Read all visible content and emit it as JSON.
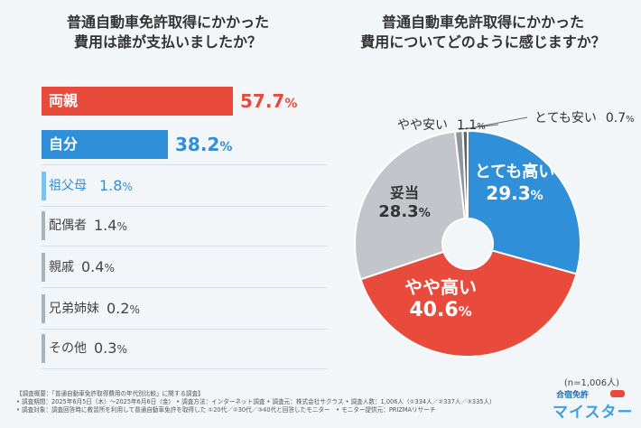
{
  "left": {
    "title_line1": "普通自動車免許取得にかかった",
    "title_line2": "費用は誰が支払いましたか？"
  },
  "right": {
    "title_line1": "普通自動車免許取得にかかった",
    "title_line2": "費用についてどのように感じますか？",
    "n_label": "(n=1,006人)"
  },
  "chart_data": [
    {
      "type": "bar",
      "orientation": "horizontal",
      "title": "普通自動車免許取得にかかった費用は誰が支払いましたか？",
      "categories": [
        "両親",
        "自分",
        "祖父母",
        "配偶者",
        "親戚",
        "兄弟姉妹",
        "その他"
      ],
      "values": [
        57.7,
        38.2,
        1.8,
        1.4,
        0.4,
        0.2,
        0.3
      ],
      "value_labels": [
        "57.7",
        "38.2",
        "1.8",
        "1.4",
        "0.4",
        "0.2",
        "0.3"
      ],
      "unit": "%",
      "xlim": [
        0,
        60
      ],
      "colors": [
        "#e84b3c",
        "#2f8fd8",
        "#7fc0ec",
        "#a8b2bb",
        "#a8b2bb",
        "#a8b2bb",
        "#a8b2bb"
      ]
    },
    {
      "type": "pie",
      "style": "donut",
      "title": "普通自動車免許取得にかかった費用についてどのように感じますか？",
      "slices": [
        {
          "label": "とても高い",
          "value": 29.3,
          "value_label": "29.3",
          "color": "#2f8fd8"
        },
        {
          "label": "やや高い",
          "value": 40.6,
          "value_label": "40.6",
          "color": "#e84b3c"
        },
        {
          "label": "妥当",
          "value": 28.3,
          "value_label": "28.3",
          "color": "#c2c6cb"
        },
        {
          "label": "やや安い",
          "value": 1.1,
          "value_label": "1.1",
          "color": "#8e969d"
        },
        {
          "label": "とても安い",
          "value": 0.7,
          "value_label": "0.7",
          "color": "#5d656c"
        }
      ],
      "unit": "%",
      "n": "n=1,006人"
    }
  ],
  "footer": {
    "line1": "【調査概要：「普通自動車免許取得費用の年代別比較」に関する調査】",
    "line2": "• 調査期間：2025年6月5日（木）〜2025年6月6日（金） • 調査方法：インターネット調査 • 調査元：株式会社サクラス • 調査人数：1,006人（①334人／②337人／③335人）",
    "line3": "• 調査対象：調査回答時に教習所を利用して普通自動車免許を取得した ①20代／②30代／③40代と回答したモニター　• モニター提供元：PRIZMAリサーチ"
  },
  "logo": {
    "top": "合宿免許",
    "main": "マイスター"
  }
}
